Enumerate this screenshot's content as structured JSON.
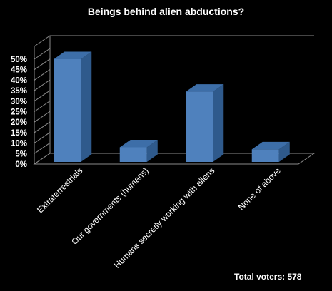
{
  "chart_data": {
    "type": "bar",
    "title": "Beings behind alien abductions?",
    "categories": [
      "Extraterrestrials",
      "Our governments (humans)",
      "Humans secretly working with aliens",
      "None of above"
    ],
    "values": [
      50,
      8,
      34.5,
      7
    ],
    "ylim": [
      0,
      50
    ],
    "ytick_labels": [
      "0%",
      "5%",
      "10%",
      "15%",
      "20%",
      "25%",
      "30%",
      "35%",
      "40%",
      "45%",
      "50%"
    ],
    "ytick_values": [
      0,
      5,
      10,
      15,
      20,
      25,
      30,
      35,
      40,
      45,
      50
    ],
    "grid": false,
    "style": "3d",
    "bar_color": "#4f81bd",
    "footer": "Total voters: 578"
  }
}
